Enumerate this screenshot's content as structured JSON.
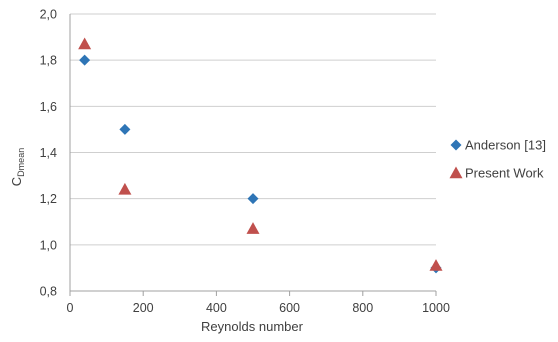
{
  "chart_data": {
    "type": "scatter",
    "title": "",
    "xlabel": "Reynolds number",
    "ylabel_main": "C",
    "ylabel_sub": "Dmean",
    "xlim": [
      0,
      1000
    ],
    "ylim": [
      0.8,
      2.0
    ],
    "xticks": [
      0,
      200,
      400,
      600,
      800,
      1000
    ],
    "yticks": [
      0.8,
      1.0,
      1.2,
      1.4,
      1.6,
      1.8,
      2.0
    ],
    "yticklabels": [
      "0,8",
      "1,0",
      "1,2",
      "1,4",
      "1,6",
      "1,8",
      "2,0"
    ],
    "grid": "horizontal",
    "legend_position": "right",
    "series": [
      {
        "name": "Anderson [13]",
        "marker": "diamond",
        "color": "#2e75b6",
        "x": [
          40,
          150,
          500,
          1000
        ],
        "y": [
          1.8,
          1.5,
          1.2,
          0.9
        ]
      },
      {
        "name": "Present Work",
        "marker": "triangle",
        "color": "#c0504d",
        "x": [
          40,
          150,
          500,
          1000
        ],
        "y": [
          1.87,
          1.24,
          1.07,
          0.91
        ]
      }
    ]
  }
}
